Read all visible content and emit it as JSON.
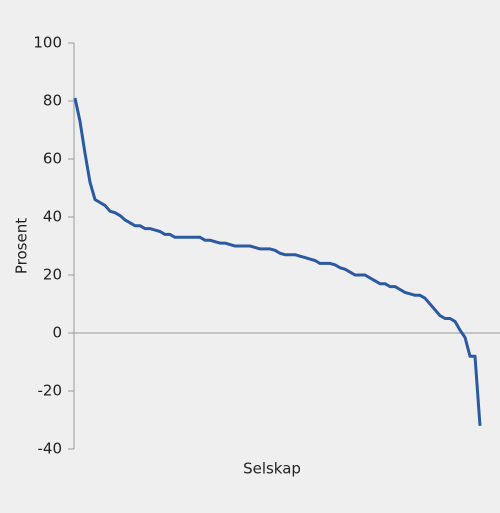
{
  "chart_data": {
    "type": "line",
    "xlabel": "Selskap",
    "ylabel": "Prosent",
    "ylim": [
      -40,
      100
    ],
    "yticks": [
      -40,
      -20,
      0,
      20,
      40,
      60,
      80,
      100
    ],
    "series": [
      {
        "color": "#2b5aa3",
        "values": [
          81,
          73,
          62,
          52,
          46,
          45,
          44,
          42,
          41.5,
          40.5,
          39,
          38,
          37,
          37,
          36,
          36,
          35.5,
          35,
          34,
          34,
          33,
          33,
          33,
          33,
          33,
          33,
          32,
          32,
          31.5,
          31,
          31,
          30.5,
          30,
          30,
          30,
          30,
          29.5,
          29,
          29,
          29,
          28.5,
          27.5,
          27,
          27,
          27,
          26.5,
          26,
          25.5,
          25,
          24,
          24,
          24,
          23.5,
          22.5,
          22,
          21,
          20,
          20,
          20,
          19,
          18,
          17,
          17,
          16,
          16,
          15,
          14,
          13.5,
          13,
          13,
          12,
          10,
          8,
          6,
          5,
          5,
          4,
          1,
          -1.5,
          -8,
          -8,
          -32
        ]
      }
    ]
  }
}
